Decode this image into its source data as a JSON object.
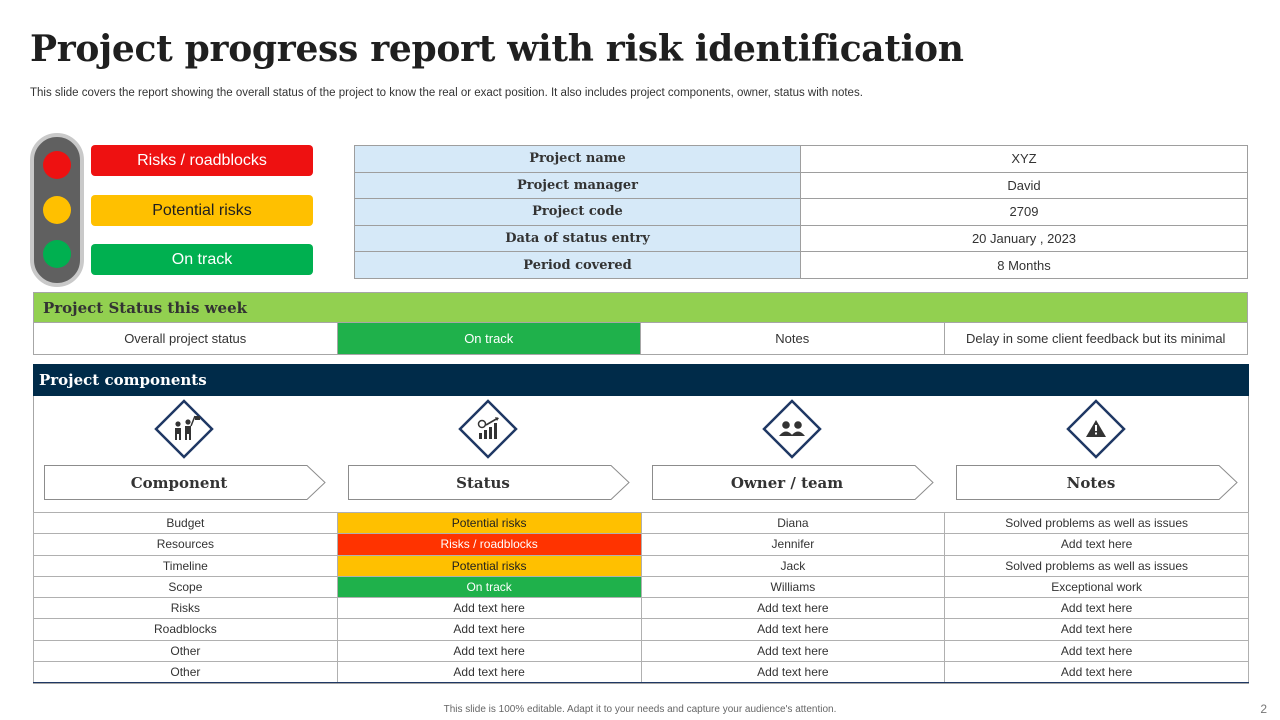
{
  "title": "Project progress report with risk identification",
  "subtitle": "This slide covers the report showing the overall status  of the project to know the real or exact position. It also includes project components, owner, status with notes.",
  "legend": {
    "risks": "Risks / roadblocks",
    "potential": "Potential risks",
    "on_track": "On track"
  },
  "colors": {
    "red": "#ee1111",
    "yellow": "#ffc000",
    "green": "#00b050",
    "navy": "#002b49",
    "lightgreen": "#92d050",
    "lightblue": "#d6e9f8"
  },
  "project_info": [
    {
      "key": "Project name",
      "value": "XYZ"
    },
    {
      "key": "Project manager",
      "value": "David"
    },
    {
      "key": "Project code",
      "value": "2709"
    },
    {
      "key": "Data of status entry",
      "value": "20 January  , 2023"
    },
    {
      "key": "Period covered",
      "value": "8 Months"
    }
  ],
  "status_week": {
    "heading": "Project Status this week",
    "overall_label": "Overall  project status",
    "overall_value": "On track",
    "notes_label": "Notes",
    "notes_value": "Delay  in some client  feedback but its minimal"
  },
  "components": {
    "heading": "Project components",
    "columns": [
      {
        "label": "Component",
        "icon": "people-flag-icon"
      },
      {
        "label": "Status",
        "icon": "growth-chart-icon"
      },
      {
        "label": "Owner / team",
        "icon": "team-icon"
      },
      {
        "label": "Notes",
        "icon": "warning-icon"
      }
    ],
    "rows": [
      [
        "Budget",
        "Potential risks",
        "Diana",
        "Solved problems as well as issues"
      ],
      [
        "Resources",
        "Risks / roadblocks",
        "Jennifer",
        "Add text here"
      ],
      [
        "Timeline",
        "Potential risks",
        "Jack",
        "Solved problems as well as issues"
      ],
      [
        "Scope",
        "On track",
        "Williams",
        "Exceptional work"
      ],
      [
        "Risks",
        "Add text here",
        "Add text here",
        "Add text here"
      ],
      [
        "Roadblocks",
        "Add text here",
        "Add text here",
        "Add text here"
      ],
      [
        "Other",
        "Add text here",
        "Add text here",
        "Add text here"
      ],
      [
        "Other",
        "Add text here",
        "Add text here",
        "Add text here"
      ]
    ]
  },
  "footer": "This slide is 100% editable.  Adapt it to your needs and capture your audience's attention.",
  "page_number": "2"
}
